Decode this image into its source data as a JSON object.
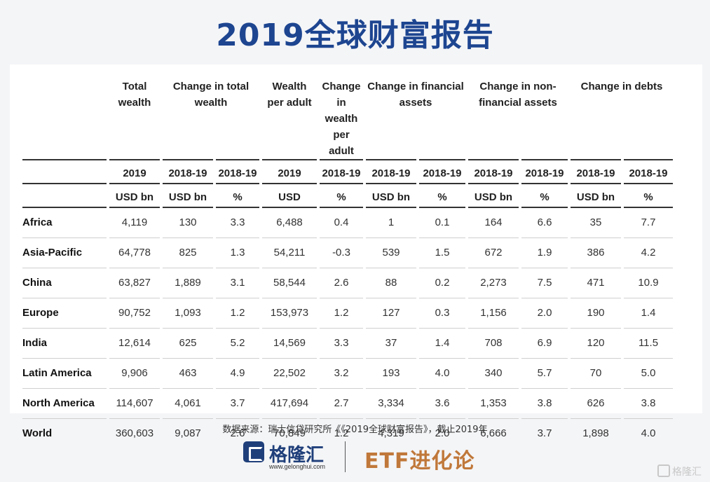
{
  "title": "2019全球财富报告",
  "table": {
    "headers": [
      {
        "label": "",
        "lines": []
      },
      {
        "lines": [
          "Total",
          "wealth"
        ]
      },
      {
        "lines": [
          "Change in total",
          "wealth"
        ]
      },
      {
        "lines": [
          "Wealth",
          "per adult"
        ]
      },
      {
        "lines": [
          "Change",
          "in wealth",
          "per adult"
        ]
      },
      {
        "lines": [
          "Change in financial",
          "assets"
        ]
      },
      {
        "lines": [
          "Change in non-",
          "financial assets"
        ]
      },
      {
        "lines": [
          "Change in debts"
        ]
      }
    ],
    "years": [
      "2019",
      "2018-19",
      "2018-19",
      "2019",
      "2018-19",
      "2018-19",
      "2018-19",
      "2018-19",
      "2018-19",
      "2018-19",
      "2018-19"
    ],
    "units": [
      "USD bn",
      "USD bn",
      "%",
      "USD",
      "%",
      "USD bn",
      "%",
      "USD bn",
      "%",
      "USD bn",
      "%"
    ],
    "rows": [
      {
        "region": "Africa",
        "values": [
          "4,119",
          "130",
          "3.3",
          "6,488",
          "0.4",
          "1",
          "0.1",
          "164",
          "6.6",
          "35",
          "7.7"
        ]
      },
      {
        "region": "Asia-Pacific",
        "values": [
          "64,778",
          "825",
          "1.3",
          "54,211",
          "-0.3",
          "539",
          "1.5",
          "672",
          "1.9",
          "386",
          "4.2"
        ]
      },
      {
        "region": "China",
        "values": [
          "63,827",
          "1,889",
          "3.1",
          "58,544",
          "2.6",
          "88",
          "0.2",
          "2,273",
          "7.5",
          "471",
          "10.9"
        ]
      },
      {
        "region": "Europe",
        "values": [
          "90,752",
          "1,093",
          "1.2",
          "153,973",
          "1.2",
          "127",
          "0.3",
          "1,156",
          "2.0",
          "190",
          "1.4"
        ]
      },
      {
        "region": "India",
        "values": [
          "12,614",
          "625",
          "5.2",
          "14,569",
          "3.3",
          "37",
          "1.4",
          "708",
          "6.9",
          "120",
          "11.5"
        ]
      },
      {
        "region": "Latin America",
        "values": [
          "9,906",
          "463",
          "4.9",
          "22,502",
          "3.2",
          "193",
          "4.0",
          "340",
          "5.7",
          "70",
          "5.0"
        ]
      },
      {
        "region": "North America",
        "values": [
          "114,607",
          "4,061",
          "3.7",
          "417,694",
          "2.7",
          "3,334",
          "3.6",
          "1,353",
          "3.8",
          "626",
          "3.8"
        ]
      },
      {
        "region": "World",
        "values": [
          "360,603",
          "9,087",
          "2.6",
          "70,849",
          "1.2",
          "4,319",
          "2.0",
          "6,666",
          "3.7",
          "1,898",
          "4.0"
        ]
      }
    ]
  },
  "source": "数据来源：瑞士信贷研究所《《2019全球财富报告》，截止2019年",
  "footer": {
    "brand1": "格隆汇",
    "brand1_url": "www.gelonghui.com",
    "brand2": "ETF进化论",
    "watermark": "格隆汇"
  }
}
